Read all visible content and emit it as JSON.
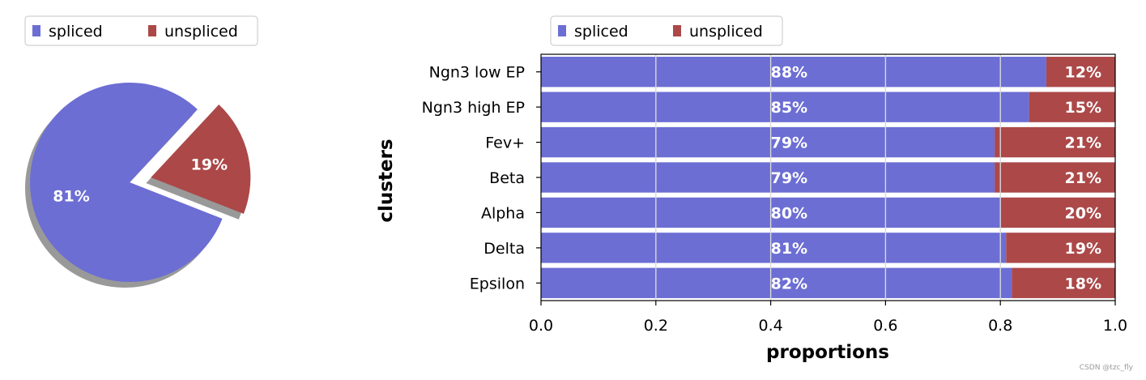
{
  "chart_data": [
    {
      "type": "pie",
      "title": "",
      "labels": [
        "spliced",
        "unspliced"
      ],
      "values": [
        81,
        19
      ],
      "value_labels": [
        "81%",
        "19%"
      ],
      "colors": [
        "#6c6ed4",
        "#ac4848"
      ],
      "exploded": [
        "unspliced"
      ],
      "shadow": true,
      "legend": {
        "placement": "top-left",
        "entries": [
          "spliced",
          "unspliced"
        ]
      }
    },
    {
      "type": "bar",
      "orientation": "horizontal",
      "stacked": true,
      "title": "",
      "categories": [
        "Ngn3 low EP",
        "Ngn3 high EP",
        "Fev+",
        "Beta",
        "Alpha",
        "Delta",
        "Epsilon"
      ],
      "series": [
        {
          "name": "spliced",
          "color": "#6c6ed4",
          "values": [
            0.88,
            0.85,
            0.79,
            0.79,
            0.8,
            0.81,
            0.82
          ],
          "labels": [
            "88%",
            "85%",
            "79%",
            "79%",
            "80%",
            "81%",
            "82%"
          ]
        },
        {
          "name": "unspliced",
          "color": "#ac4848",
          "values": [
            0.12,
            0.15,
            0.21,
            0.21,
            0.2,
            0.19,
            0.18
          ],
          "labels": [
            "12%",
            "15%",
            "21%",
            "21%",
            "20%",
            "19%",
            "18%"
          ]
        }
      ],
      "xlabel": "proportions",
      "ylabel": "clusters",
      "xlim": [
        0.0,
        1.0
      ],
      "xticks": [
        "0.0",
        "0.2",
        "0.4",
        "0.6",
        "0.8",
        "1.0"
      ],
      "xtick_values": [
        0.0,
        0.2,
        0.4,
        0.6,
        0.8,
        1.0
      ],
      "grid": true,
      "legend": {
        "placement": "top-left",
        "entries": [
          "spliced",
          "unspliced"
        ]
      }
    }
  ],
  "watermark": "CSDN @tzc_fly"
}
